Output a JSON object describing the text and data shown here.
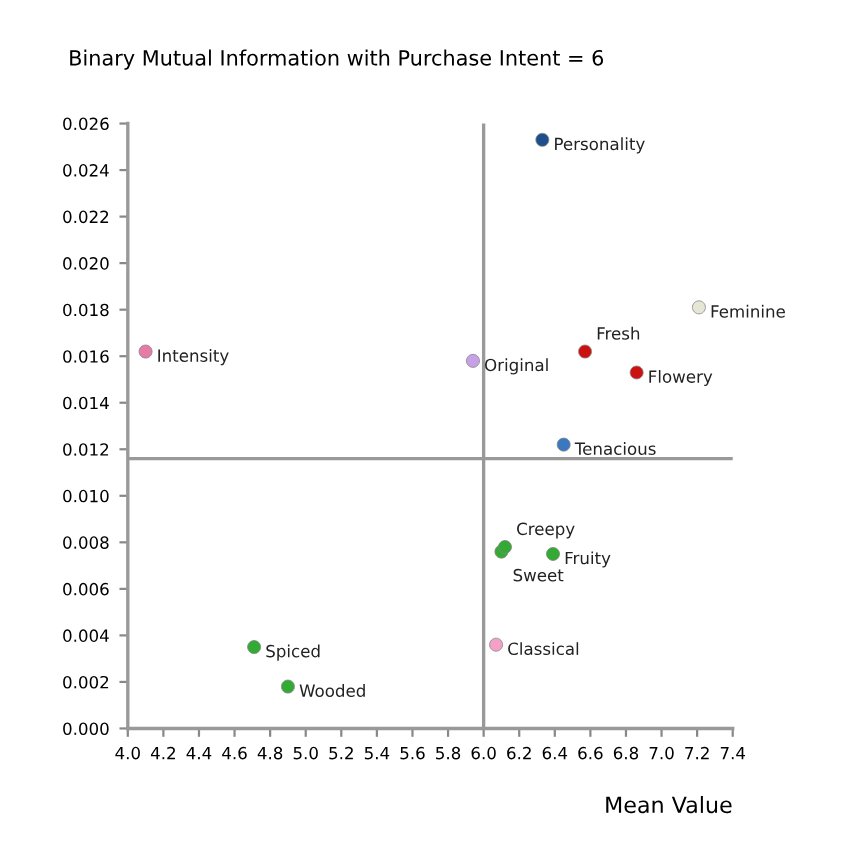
{
  "chart_data": {
    "type": "scatter",
    "title": "Binary Mutual Information with Purchase Intent = 6",
    "xlabel": "Mean Value",
    "x": [
      6.33,
      7.21,
      6.57,
      6.86,
      5.94,
      4.1,
      6.45,
      6.12,
      6.1,
      6.39,
      6.07,
      4.71,
      4.9
    ],
    "values": [
      0.0253,
      0.0181,
      0.0162,
      0.0153,
      0.0158,
      0.0162,
      0.0122,
      0.0078,
      0.0076,
      0.0075,
      0.0036,
      0.0035,
      0.0018
    ],
    "colors": [
      "#1f4e8c",
      "#e6e6d6",
      "#cc1111",
      "#cc1111",
      "#c8a0e8",
      "#e87aa8",
      "#3a78c0",
      "#33aa33",
      "#33aa33",
      "#33aa33",
      "#f4a0c8",
      "#33aa33",
      "#33aa33"
    ],
    "annotations": [
      {
        "text": "Personality",
        "x": 6.33,
        "y": 0.0253
      },
      {
        "text": "Feminine",
        "x": 7.21,
        "y": 0.0181
      },
      {
        "text": "Fresh",
        "x": 6.57,
        "y": 0.0162
      },
      {
        "text": "Flowery",
        "x": 6.86,
        "y": 0.0153
      },
      {
        "text": "Original",
        "x": 5.94,
        "y": 0.0158
      },
      {
        "text": "Intensity",
        "x": 4.1,
        "y": 0.0162
      },
      {
        "text": "Tenacious",
        "x": 6.45,
        "y": 0.0122
      },
      {
        "text": "Creepy",
        "x": 6.12,
        "y": 0.0078
      },
      {
        "text": "Sweet",
        "x": 6.1,
        "y": 0.0076
      },
      {
        "text": "Fruity",
        "x": 6.39,
        "y": 0.0075
      },
      {
        "text": "Classical",
        "x": 6.07,
        "y": 0.0036
      },
      {
        "text": "Spiced",
        "x": 4.71,
        "y": 0.0035
      },
      {
        "text": "Wooded",
        "x": 4.9,
        "y": 0.0018
      }
    ],
    "ref_lines": [
      {
        "axis": "x",
        "value": 6.0,
        "color": "#999999"
      },
      {
        "axis": "y",
        "value": 0.0116,
        "color": "#999999"
      }
    ],
    "xlim": [
      4.0,
      7.4
    ],
    "ylim": [
      0.0,
      0.026
    ],
    "xticks": [
      {
        "value": 4.0,
        "label": "4.0"
      },
      4.2,
      4.4,
      4.6,
      4.8,
      {
        "value": 5.0,
        "label": "5.0"
      },
      5.2,
      5.4,
      5.6,
      5.8,
      {
        "value": 6.0,
        "label": "6.0"
      },
      6.2,
      6.4,
      6.6,
      6.8,
      {
        "value": 7.0,
        "label": "7.0"
      },
      7.2,
      7.4
    ],
    "yticks": [
      {
        "value": 0.0,
        "label": "0.000"
      },
      {
        "value": 0.002,
        "label": "0.002"
      },
      {
        "value": 0.004,
        "label": "0.004"
      },
      {
        "value": 0.006,
        "label": "0.006"
      },
      {
        "value": 0.008,
        "label": "0.008"
      },
      {
        "value": 0.01,
        "label": "0.010"
      },
      {
        "value": 0.012,
        "label": "0.012"
      },
      {
        "value": 0.014,
        "label": "0.014"
      },
      {
        "value": 0.016,
        "label": "0.016"
      },
      {
        "value": 0.018,
        "label": "0.018"
      },
      {
        "value": 0.02,
        "label": "0.020"
      },
      {
        "value": 0.022,
        "label": "0.022"
      },
      {
        "value": 0.024,
        "label": "0.024"
      },
      {
        "value": 0.026,
        "label": "0.026"
      }
    ],
    "grid": false,
    "marker": "circle"
  }
}
